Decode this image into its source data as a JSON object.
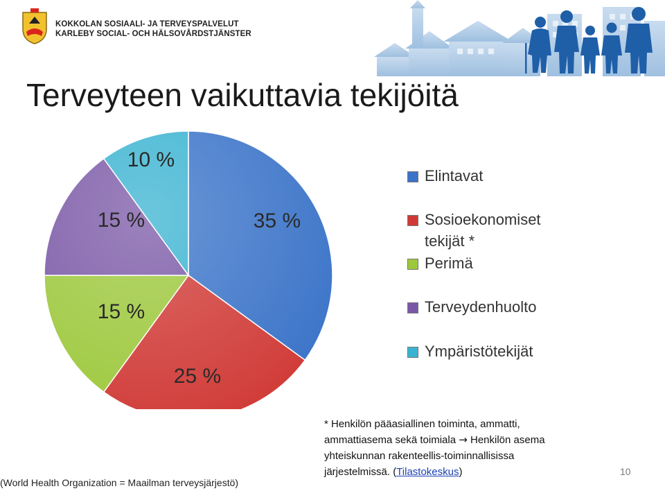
{
  "header": {
    "org_line1": "KOKKOLAN SOSIAALI- JA TERVEYSPALVELUT",
    "org_line2": "KARLEBY SOCIAL- OCH HÄLSOVÅRDSTJÄNSTER"
  },
  "title": "Terveyteen vaikuttavia tekijöitä",
  "chart_data": {
    "type": "pie",
    "categories": [
      "Elintavat",
      "Sosioekonomiset tekijät *",
      "Perimä",
      "Terveydenhuolto",
      "Ympäristötekijät"
    ],
    "values": [
      35,
      25,
      15,
      15,
      10
    ],
    "data_labels": [
      "35 %",
      "25 %",
      "15 %",
      "15 %",
      "10 %"
    ],
    "colors": [
      "#3a73c8",
      "#d03a36",
      "#9dc83c",
      "#7a58a6",
      "#3ab3d1"
    ],
    "legend_position": "right"
  },
  "legend": {
    "items": [
      {
        "line1": "Elintavat",
        "line2": ""
      },
      {
        "line1": "Sosioekonomiset",
        "line2": "tekijät *"
      },
      {
        "line1": "Perimä",
        "line2": ""
      },
      {
        "line1": "Terveydenhuolto",
        "line2": ""
      },
      {
        "line1": "Ympäristötekijät",
        "line2": ""
      }
    ]
  },
  "footnote": {
    "line1": "* Henkilön pääasiallinen toiminta, ammatti,",
    "line2_a": "ammattiasema sekä toimiala ",
    "arrow": "→",
    "line2_b": " Henkilön asema",
    "line3": "yhteiskunnan rakenteellis-toiminnallisissa",
    "line4_a": "järjestelmissä. (",
    "link": "Tilastokeskus",
    "line4_b": ")"
  },
  "source": "(World Health Organization = Maailman terveysjärjestö)",
  "page_number": "10"
}
